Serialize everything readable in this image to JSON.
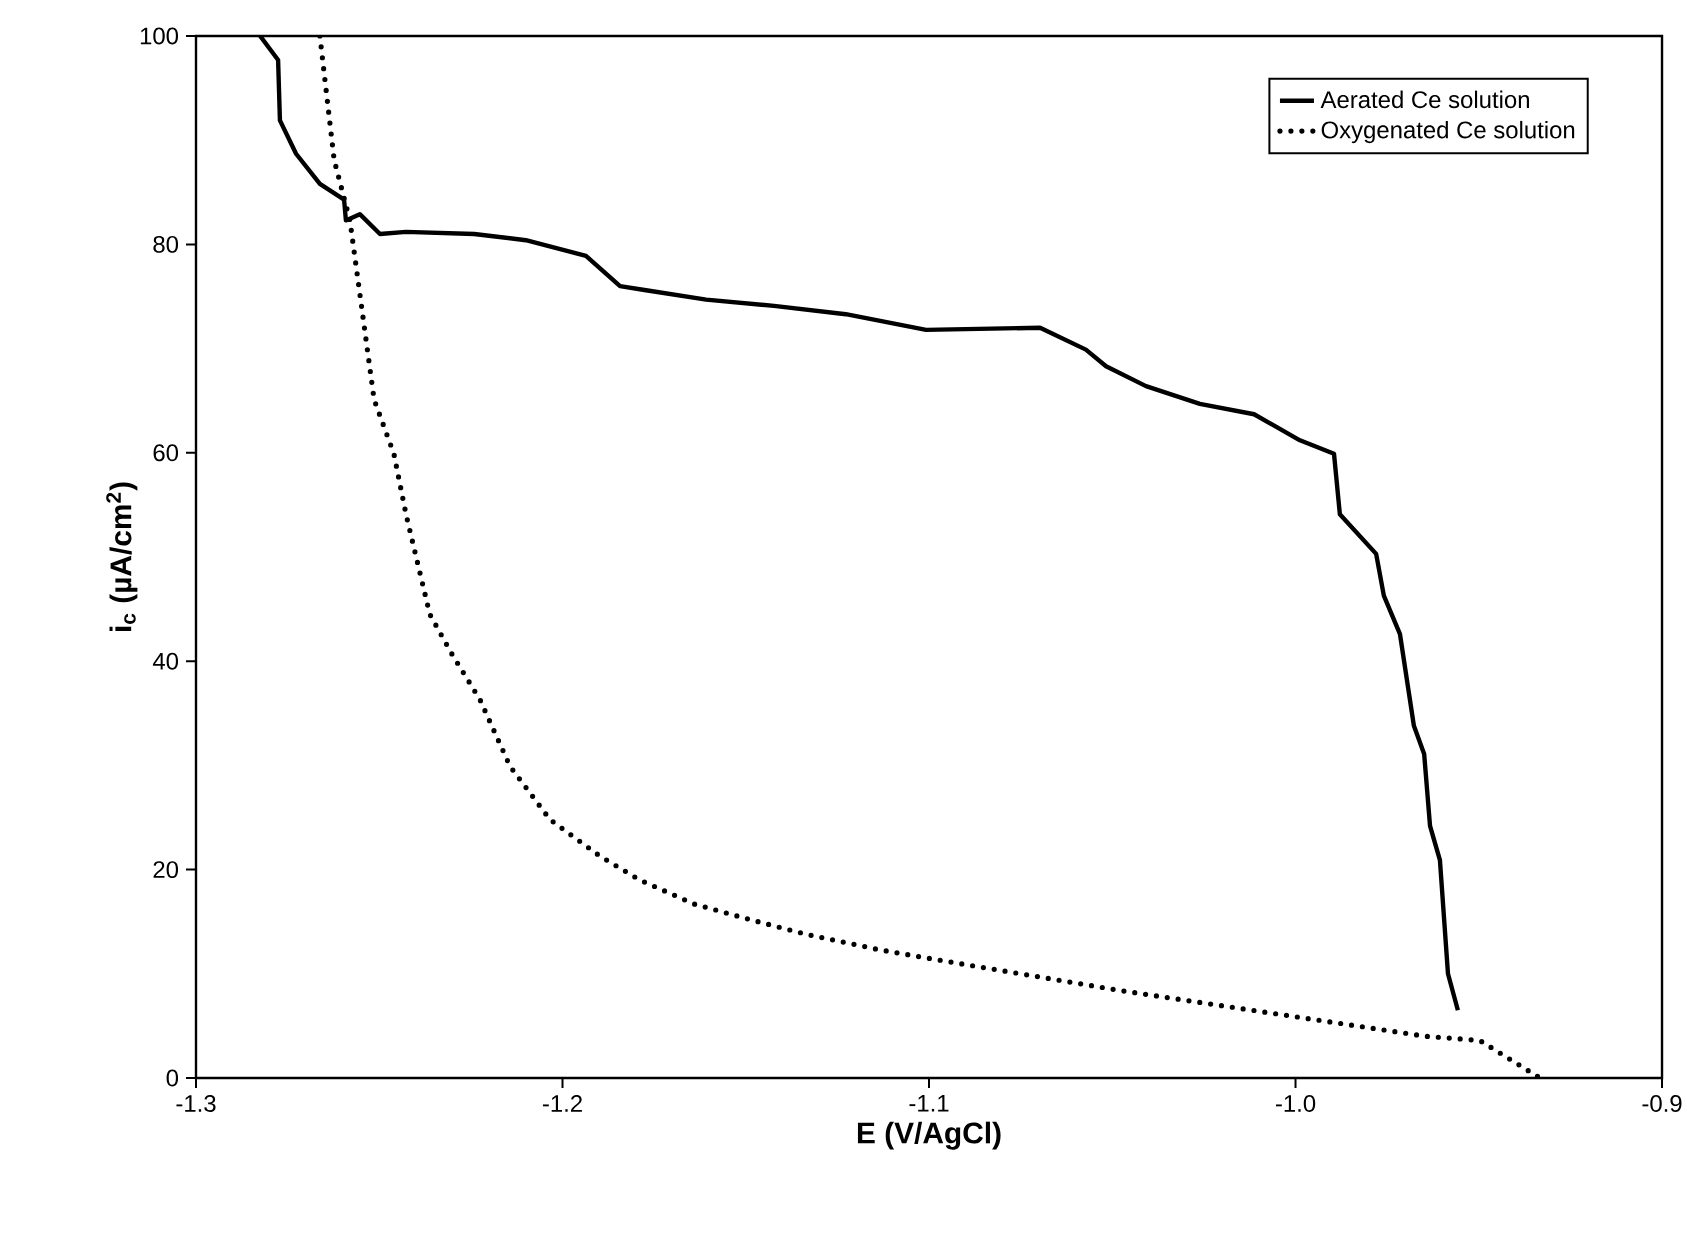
{
  "chart_data": {
    "type": "line",
    "xlabel": "E (V/AgCl)",
    "ylabel": "i$_{c}$ (µA/cm$^{2}$)",
    "xlim": [
      -1.3,
      -0.9
    ],
    "ylim": [
      0,
      100
    ],
    "xticks": [
      -1.3,
      -1.2,
      -1.1,
      {
        "value": -1.0,
        "label": "-1.0"
      },
      -0.9
    ],
    "yticks": [
      0,
      20,
      40,
      60,
      80,
      100
    ],
    "legend": "top right",
    "grid": false,
    "series": [
      {
        "name": "Aerated Ce solution",
        "color": "#000000",
        "line_style": "solid",
        "x": [
          -1.2825,
          -1.2776,
          -1.2771,
          -1.2727,
          -1.2662,
          -1.2596,
          -1.2591,
          -1.2553,
          -1.2498,
          -1.2427,
          -1.2241,
          -1.21,
          -1.1936,
          -1.1843,
          -1.1772,
          -1.1608,
          -1.1423,
          -1.1227,
          -1.1008,
          -1.0697,
          -1.0572,
          -1.0517,
          -1.0408,
          -1.0261,
          -1.0113,
          -0.9988,
          -0.9895,
          -0.9879,
          -0.978,
          -0.9759,
          -0.9715,
          -0.9677,
          -0.9649,
          -0.9633,
          -0.9606,
          -0.9584,
          -0.9557
        ],
        "values": [
          100,
          97.7,
          91.9,
          88.7,
          85.8,
          84.3,
          82.3,
          82.9,
          81,
          81.2,
          81,
          80.4,
          78.9,
          76,
          75.6,
          74.7,
          74.1,
          73.3,
          71.8,
          72,
          69.9,
          68.3,
          66.4,
          64.7,
          63.7,
          61.2,
          59.9,
          54.1,
          50.3,
          46.3,
          42.6,
          33.8,
          31.1,
          24.2,
          20.9,
          10,
          6.5
        ]
      },
      {
        "name": "Oxygenated Ce solution",
        "color": "#000000",
        "line_style": "dotted",
        "x": [
          -1.2662,
          -1.2623,
          -1.258,
          -1.2514,
          -1.246,
          -1.2427,
          -1.2362,
          -1.2302,
          -1.2225,
          -1.2143,
          -1.2034,
          -1.1898,
          -1.1789,
          -1.1641,
          -1.1488,
          -1.1336,
          -1.1134,
          -1.097,
          -1.0479,
          -1.0042,
          -0.9644,
          -0.9497,
          -0.9333
        ],
        "values": [
          100,
          88.1,
          82.3,
          65.1,
          59.9,
          54.1,
          44.5,
          40.7,
          36.3,
          29.9,
          24.8,
          21.3,
          19,
          16.7,
          15.2,
          13.8,
          12.3,
          11.3,
          8.4,
          6.1,
          4,
          3.6,
          0
        ]
      }
    ]
  }
}
